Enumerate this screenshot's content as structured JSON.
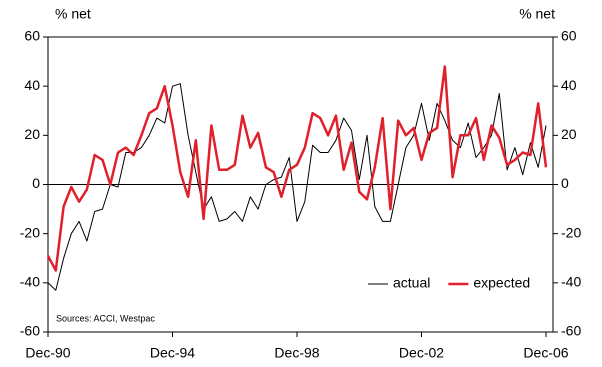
{
  "chart_data": {
    "type": "line",
    "y_label": "% net",
    "y2_label": "% net",
    "annotation": "Sources: ACCI, Westpac",
    "categories": [
      "Dec-90",
      null,
      null,
      null,
      null,
      null,
      null,
      null,
      null,
      null,
      null,
      null,
      null,
      null,
      null,
      null,
      "Dec-94",
      null,
      null,
      null,
      null,
      null,
      null,
      null,
      null,
      null,
      null,
      null,
      null,
      null,
      null,
      null,
      "Dec-98",
      null,
      null,
      null,
      null,
      null,
      null,
      null,
      null,
      null,
      null,
      null,
      null,
      null,
      null,
      null,
      "Dec-02",
      null,
      null,
      null,
      null,
      null,
      null,
      null,
      null,
      null,
      null,
      null,
      null,
      null,
      null,
      null,
      "Dec-06"
    ],
    "series": [
      {
        "name": "actual",
        "color": "#000000",
        "width": 1,
        "values": [
          -40,
          -43,
          -30,
          -20,
          -15,
          -23,
          -11,
          -10,
          0,
          -1,
          13,
          13,
          15,
          20,
          27,
          25,
          40,
          41,
          20,
          5,
          -10,
          -5,
          -15,
          -14,
          -11,
          -15,
          -5,
          -10,
          0,
          2,
          3,
          11,
          -15,
          -7,
          16,
          13,
          13,
          18,
          27,
          22,
          2,
          20,
          -9,
          -15,
          -15,
          0,
          15,
          20,
          33,
          18,
          33,
          26,
          18,
          15,
          25,
          11,
          15,
          20,
          37,
          6,
          15,
          4,
          17,
          7,
          24
        ]
      },
      {
        "name": "expected",
        "color": "#e0202a",
        "width": 2.5,
        "values": [
          -29,
          -35,
          -9,
          -1,
          -7,
          -2,
          12,
          10,
          0,
          13,
          15,
          12,
          20,
          29,
          31,
          40,
          24,
          5,
          -5,
          18,
          -14,
          24,
          6,
          6,
          8,
          28,
          15,
          21,
          7,
          5,
          -5,
          6,
          8,
          15,
          29,
          27,
          20,
          28,
          6,
          17,
          -3,
          -6,
          7,
          27,
          -10,
          26,
          20,
          23,
          10,
          21,
          23,
          48,
          3,
          20,
          20,
          27,
          10,
          24,
          19,
          8,
          10,
          13,
          12,
          33,
          7
        ]
      }
    ],
    "ylim": [
      -60,
      60
    ],
    "yticks": [
      -60,
      -40,
      -20,
      0,
      20,
      40,
      60
    ],
    "y2lim": [
      -60,
      60
    ],
    "y2ticks": [
      -60,
      -40,
      -20,
      0,
      20,
      40,
      60
    ],
    "zero_line": true,
    "legend": "lower right"
  }
}
